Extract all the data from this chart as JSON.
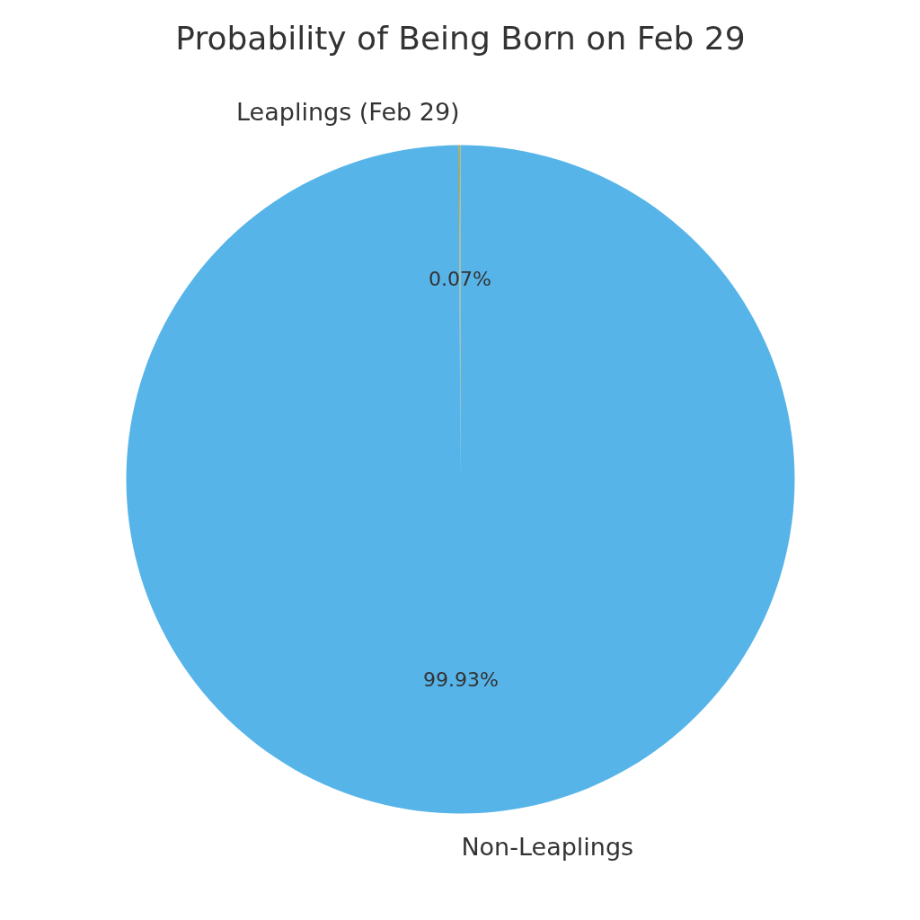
{
  "chart_data": {
    "type": "pie",
    "title": "Probability of Being Born on Feb 29",
    "categories": [
      "Leaplings (Feb 29)",
      "Non-Leaplings"
    ],
    "values": [
      0.07,
      99.93
    ],
    "colors": [
      "#e69f00",
      "#56b4e9"
    ],
    "value_labels": [
      "0.07%",
      "99.93%"
    ]
  }
}
